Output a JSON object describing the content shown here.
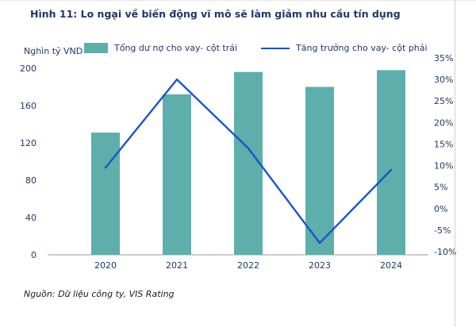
{
  "page": {
    "title": "Hình 11: Lo ngại về biến động vĩ mô sẽ làm giảm nhu cầu tín dụng",
    "source": "Nguồn: Dữ liệu công ty, VIS Rating"
  },
  "chart_data": {
    "type": "bar",
    "subtype": "combo-bar-line",
    "title": "Hình 11: Lo ngại về biến động vĩ mô sẽ làm giảm nhu cầu tín dụng",
    "categories": [
      "2020",
      "2021",
      "2022",
      "2023",
      "2024"
    ],
    "series": [
      {
        "name": "Tổng dư nợ cho vay- cột trái",
        "type": "bar",
        "axis": "left",
        "color": "#5EAEAB",
        "values": [
          131,
          172,
          196,
          180,
          198
        ]
      },
      {
        "name": "Tăng trưởng cho vay- cột phải",
        "type": "line",
        "axis": "right",
        "color": "#1956C9",
        "values": [
          9.5,
          30,
          14,
          -8,
          9
        ]
      }
    ],
    "left_axis": {
      "label": "Nghìn tỷ VND",
      "min": 0,
      "max": 200,
      "step": 40
    },
    "right_axis": {
      "min": -10,
      "max": 35,
      "step": 5,
      "format": "percent"
    },
    "legend_position": "top",
    "grid": false,
    "source": "Nguồn: Dữ liệu công ty, VIS Rating"
  }
}
